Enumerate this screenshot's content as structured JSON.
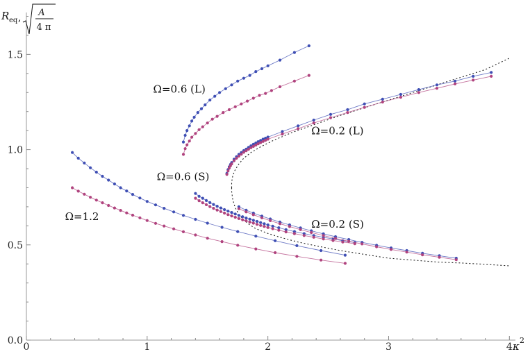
{
  "chart_data": {
    "type": "scatter",
    "title": "",
    "xlabel": "κ",
    "xlabel_sup": "2",
    "ylabel_main": "R",
    "ylabel_sub": "eq",
    "ylabel_comma": ",",
    "ylabel_frac_num": "A",
    "ylabel_frac_den": "4 π",
    "xlim": [
      0,
      4.05
    ],
    "ylim": [
      0,
      1.72
    ],
    "xticks": [
      0,
      1,
      2,
      3,
      4
    ],
    "xtick_labels": [
      "0",
      "1",
      "2",
      "3",
      "4"
    ],
    "yticks": [
      0.0,
      0.5,
      1.0,
      1.5
    ],
    "ytick_labels": [
      "0.0",
      "0.5",
      "1.0",
      "1.5"
    ],
    "grid": false,
    "colors": {
      "blue": "#3f4fb4",
      "magenta": "#b0437e",
      "dashed": "#222222"
    },
    "annotations": [
      {
        "text": "Ω=0.6 (L)",
        "x": 1.05,
        "y": 1.3
      },
      {
        "text": "Ω=0.2 (L)",
        "x": 2.36,
        "y": 1.08
      },
      {
        "text": "Ω=0.6 (S)",
        "x": 1.08,
        "y": 0.84
      },
      {
        "text": "Ω=1.2",
        "x": 0.32,
        "y": 0.63
      },
      {
        "text": "Ω=0.2 (S)",
        "x": 2.36,
        "y": 0.59
      }
    ],
    "series": [
      {
        "color": "blue",
        "x": [
          1.3,
          1.315,
          1.33,
          1.35,
          1.37,
          1.39,
          1.42,
          1.45,
          1.48,
          1.52,
          1.56,
          1.6,
          1.65,
          1.7,
          1.75,
          1.8,
          1.85,
          1.9,
          1.95,
          2.0,
          2.1,
          2.22,
          2.34
        ],
        "y": [
          1.04,
          1.075,
          1.1,
          1.125,
          1.15,
          1.17,
          1.195,
          1.215,
          1.235,
          1.26,
          1.28,
          1.3,
          1.32,
          1.34,
          1.36,
          1.375,
          1.39,
          1.41,
          1.425,
          1.44,
          1.47,
          1.51,
          1.545
        ]
      },
      {
        "color": "magenta",
        "x": [
          1.3,
          1.315,
          1.33,
          1.35,
          1.37,
          1.4,
          1.43,
          1.46,
          1.5,
          1.54,
          1.58,
          1.63,
          1.68,
          1.73,
          1.78,
          1.83,
          1.88,
          1.93,
          1.98,
          2.03,
          2.1,
          2.22,
          2.34
        ],
        "y": [
          0.975,
          1.005,
          1.025,
          1.045,
          1.065,
          1.085,
          1.105,
          1.12,
          1.14,
          1.16,
          1.175,
          1.195,
          1.21,
          1.225,
          1.24,
          1.255,
          1.27,
          1.285,
          1.295,
          1.31,
          1.33,
          1.36,
          1.39
        ]
      },
      {
        "color": "blue",
        "x": [
          1.66,
          1.67,
          1.68,
          1.69,
          1.7,
          1.72,
          1.74,
          1.76,
          1.78,
          1.8,
          1.82,
          1.84,
          1.86,
          1.88,
          1.9,
          1.92,
          1.94,
          1.96,
          1.98,
          2.0,
          2.12,
          2.25,
          2.38,
          2.52,
          2.66,
          2.8,
          2.95,
          3.1,
          3.25,
          3.4,
          3.55,
          3.7,
          3.85
        ],
        "y": [
          0.875,
          0.895,
          0.91,
          0.922,
          0.932,
          0.95,
          0.963,
          0.975,
          0.985,
          0.995,
          1.003,
          1.012,
          1.02,
          1.028,
          1.035,
          1.042,
          1.048,
          1.055,
          1.06,
          1.066,
          1.095,
          1.125,
          1.155,
          1.185,
          1.21,
          1.24,
          1.265,
          1.29,
          1.315,
          1.34,
          1.36,
          1.385,
          1.405
        ]
      },
      {
        "color": "magenta",
        "x": [
          1.66,
          1.67,
          1.68,
          1.69,
          1.7,
          1.72,
          1.74,
          1.76,
          1.78,
          1.8,
          1.82,
          1.84,
          1.86,
          1.88,
          1.9,
          1.92,
          1.94,
          1.96,
          1.98,
          2.0,
          2.12,
          2.25,
          2.38,
          2.52,
          2.66,
          2.8,
          2.95,
          3.1,
          3.25,
          3.4,
          3.55,
          3.7,
          3.85
        ],
        "y": [
          0.87,
          0.888,
          0.903,
          0.915,
          0.925,
          0.942,
          0.955,
          0.966,
          0.976,
          0.986,
          0.994,
          1.002,
          1.01,
          1.017,
          1.024,
          1.031,
          1.037,
          1.043,
          1.049,
          1.055,
          1.082,
          1.11,
          1.14,
          1.168,
          1.195,
          1.222,
          1.25,
          1.275,
          1.3,
          1.322,
          1.345,
          1.365,
          1.385
        ]
      },
      {
        "color": "blue",
        "x": [
          1.4,
          1.43,
          1.46,
          1.49,
          1.52,
          1.55,
          1.58,
          1.61,
          1.64,
          1.67,
          1.7,
          1.73,
          1.76,
          1.79,
          1.82,
          1.85,
          1.88,
          1.91,
          1.94,
          1.97,
          2.0,
          2.04,
          2.09,
          2.15,
          2.22,
          2.3,
          2.38,
          2.46,
          2.54,
          2.62,
          2.72
        ],
        "y": [
          0.77,
          0.755,
          0.745,
          0.733,
          0.722,
          0.712,
          0.703,
          0.694,
          0.685,
          0.677,
          0.67,
          0.662,
          0.655,
          0.648,
          0.641,
          0.635,
          0.629,
          0.623,
          0.617,
          0.611,
          0.605,
          0.598,
          0.59,
          0.58,
          0.57,
          0.559,
          0.549,
          0.54,
          0.531,
          0.522,
          0.512
        ]
      },
      {
        "color": "magenta",
        "x": [
          1.4,
          1.43,
          1.46,
          1.49,
          1.52,
          1.55,
          1.58,
          1.61,
          1.64,
          1.67,
          1.7,
          1.73,
          1.76,
          1.79,
          1.82,
          1.85,
          1.88,
          1.91,
          1.94,
          1.97,
          2.0,
          2.04,
          2.09,
          2.15,
          2.22,
          2.3,
          2.38,
          2.46,
          2.54,
          2.62,
          2.72
        ],
        "y": [
          0.745,
          0.732,
          0.721,
          0.711,
          0.701,
          0.692,
          0.683,
          0.675,
          0.667,
          0.659,
          0.652,
          0.645,
          0.638,
          0.632,
          0.626,
          0.62,
          0.614,
          0.608,
          0.602,
          0.597,
          0.591,
          0.585,
          0.577,
          0.568,
          0.559,
          0.549,
          0.54,
          0.531,
          0.523,
          0.515,
          0.506
        ]
      },
      {
        "color": "blue",
        "x": [
          1.76,
          1.82,
          1.88,
          1.95,
          2.02,
          2.1,
          2.18,
          2.27,
          2.36,
          2.46,
          2.56,
          2.67,
          2.78,
          2.9,
          3.02,
          3.15,
          3.28,
          3.42,
          3.56
        ],
        "y": [
          0.7,
          0.682,
          0.667,
          0.651,
          0.636,
          0.62,
          0.605,
          0.589,
          0.574,
          0.558,
          0.543,
          0.528,
          0.513,
          0.498,
          0.484,
          0.47,
          0.456,
          0.443,
          0.43
        ]
      },
      {
        "color": "magenta",
        "x": [
          1.76,
          1.82,
          1.88,
          1.95,
          2.02,
          2.1,
          2.18,
          2.27,
          2.36,
          2.46,
          2.56,
          2.67,
          2.78,
          2.9,
          3.02,
          3.15,
          3.28,
          3.42,
          3.56
        ],
        "y": [
          0.69,
          0.673,
          0.658,
          0.642,
          0.627,
          0.611,
          0.596,
          0.58,
          0.565,
          0.549,
          0.534,
          0.519,
          0.505,
          0.49,
          0.476,
          0.462,
          0.448,
          0.435,
          0.422
        ]
      },
      {
        "color": "blue",
        "x": [
          0.38,
          0.43,
          0.48,
          0.53,
          0.58,
          0.63,
          0.68,
          0.73,
          0.78,
          0.83,
          0.88,
          0.94,
          1.0,
          1.07,
          1.14,
          1.22,
          1.3,
          1.4,
          1.5,
          1.62,
          1.75,
          1.9,
          2.06,
          2.24,
          2.44,
          2.64
        ],
        "y": [
          0.985,
          0.955,
          0.93,
          0.905,
          0.882,
          0.86,
          0.84,
          0.82,
          0.8,
          0.783,
          0.765,
          0.746,
          0.728,
          0.71,
          0.692,
          0.673,
          0.655,
          0.634,
          0.614,
          0.592,
          0.57,
          0.546,
          0.522,
          0.496,
          0.47,
          0.446
        ]
      },
      {
        "color": "magenta",
        "x": [
          0.38,
          0.43,
          0.48,
          0.53,
          0.58,
          0.63,
          0.68,
          0.73,
          0.78,
          0.83,
          0.88,
          0.94,
          1.0,
          1.07,
          1.14,
          1.22,
          1.3,
          1.4,
          1.5,
          1.62,
          1.75,
          1.9,
          2.06,
          2.24,
          2.44,
          2.64
        ],
        "y": [
          0.8,
          0.782,
          0.766,
          0.75,
          0.735,
          0.721,
          0.707,
          0.694,
          0.681,
          0.668,
          0.656,
          0.642,
          0.628,
          0.613,
          0.599,
          0.584,
          0.569,
          0.552,
          0.535,
          0.517,
          0.498,
          0.479,
          0.459,
          0.44,
          0.42,
          0.403
        ]
      }
    ],
    "dashed_curve": {
      "color": "dashed",
      "x": [
        1.7,
        1.7,
        1.71,
        1.73,
        1.76,
        1.8,
        1.85,
        1.9,
        2.0,
        2.1,
        2.25,
        2.4,
        2.6,
        2.8,
        3.0,
        3.2,
        3.4,
        3.6,
        3.8,
        4.0
      ],
      "y": [
        0.8,
        0.78,
        0.735,
        0.695,
        0.66,
        0.63,
        0.605,
        0.585,
        0.56,
        0.54,
        0.515,
        0.495,
        0.47,
        0.45,
        0.43,
        0.42,
        0.41,
        0.405,
        0.398,
        0.39
      ]
    },
    "dashed_curve_upper": {
      "color": "dashed",
      "x": [
        1.7,
        1.7,
        1.71,
        1.73,
        1.76,
        1.8,
        1.86,
        1.94,
        2.05,
        2.2,
        2.4,
        2.6,
        2.8,
        3.0,
        3.2,
        3.4,
        3.6,
        3.8,
        4.0
      ],
      "y": [
        0.8,
        0.83,
        0.865,
        0.895,
        0.925,
        0.955,
        0.985,
        1.015,
        1.05,
        1.09,
        1.135,
        1.18,
        1.22,
        1.26,
        1.3,
        1.34,
        1.38,
        1.42,
        1.48
      ]
    }
  }
}
